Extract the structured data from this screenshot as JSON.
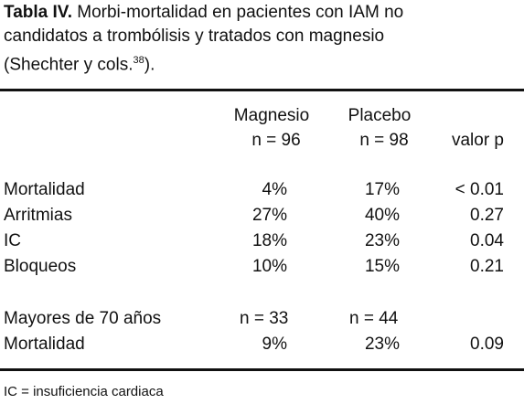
{
  "caption": {
    "label": "Tabla IV.",
    "lines": [
      "Morbi-mortalidad en pacientes con IAM no",
      "candidatos a trombólisis y tratados con magnesio",
      "(Shechter y cols."
    ],
    "ref": "38",
    "end": ")."
  },
  "table": {
    "header": [
      {
        "name": "Magnesio",
        "n": "n = 96"
      },
      {
        "name": "Placebo",
        "n": "n = 98"
      },
      {
        "name": "valor p"
      }
    ],
    "rows": [
      [
        "Mortalidad",
        "4%",
        "17%",
        "< 0.01"
      ],
      [
        "Arritmias",
        "27%",
        "40%",
        "0.27"
      ],
      [
        "IC",
        "18%",
        "23%",
        "0.04"
      ],
      [
        "Bloqueos",
        "10%",
        "15%",
        "0.21"
      ]
    ],
    "subgroup": {
      "label": "Mayores de 70 años",
      "n": [
        "n = 33",
        "n = 44"
      ],
      "rows": [
        [
          "Mortalidad",
          "9%",
          "23%",
          "0.09"
        ]
      ]
    }
  },
  "footnote": "IC = insuficiencia cardiaca"
}
